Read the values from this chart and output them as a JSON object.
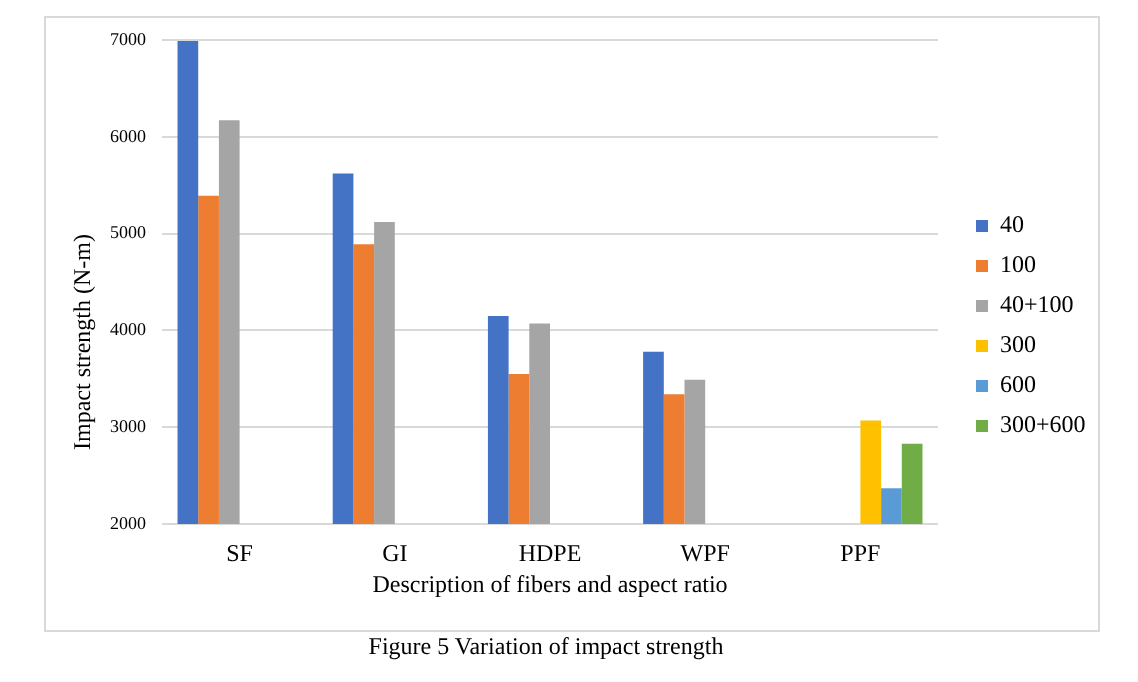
{
  "chart_data": {
    "type": "bar",
    "xlabel": "Description of fibers and aspect ratio",
    "ylabel": "Impact strength (N-m)",
    "categories": [
      "SF",
      "GI",
      "HDPE",
      "WPF",
      "PPF"
    ],
    "series": [
      {
        "name": "40",
        "color": "#4472c4",
        "values": [
          6990,
          5620,
          4150,
          3780,
          null
        ]
      },
      {
        "name": "100",
        "color": "#ed7d31",
        "values": [
          5390,
          4890,
          3550,
          3340,
          null
        ]
      },
      {
        "name": "40+100",
        "color": "#a5a5a5",
        "values": [
          6170,
          5120,
          4070,
          3490,
          null
        ]
      },
      {
        "name": "300",
        "color": "#ffc000",
        "values": [
          null,
          null,
          null,
          null,
          3070
        ]
      },
      {
        "name": "600",
        "color": "#5b9bd5",
        "values": [
          null,
          null,
          null,
          null,
          2370
        ]
      },
      {
        "name": "300+600",
        "color": "#70ad47",
        "values": [
          null,
          null,
          null,
          null,
          2830
        ]
      }
    ],
    "ylim": [
      2000,
      7000
    ],
    "yticks": [
      2000,
      3000,
      4000,
      5000,
      6000,
      7000
    ],
    "grid": "y",
    "legend": "right",
    "annotations": [
      "Figure 5 Variation of impact strength"
    ]
  }
}
